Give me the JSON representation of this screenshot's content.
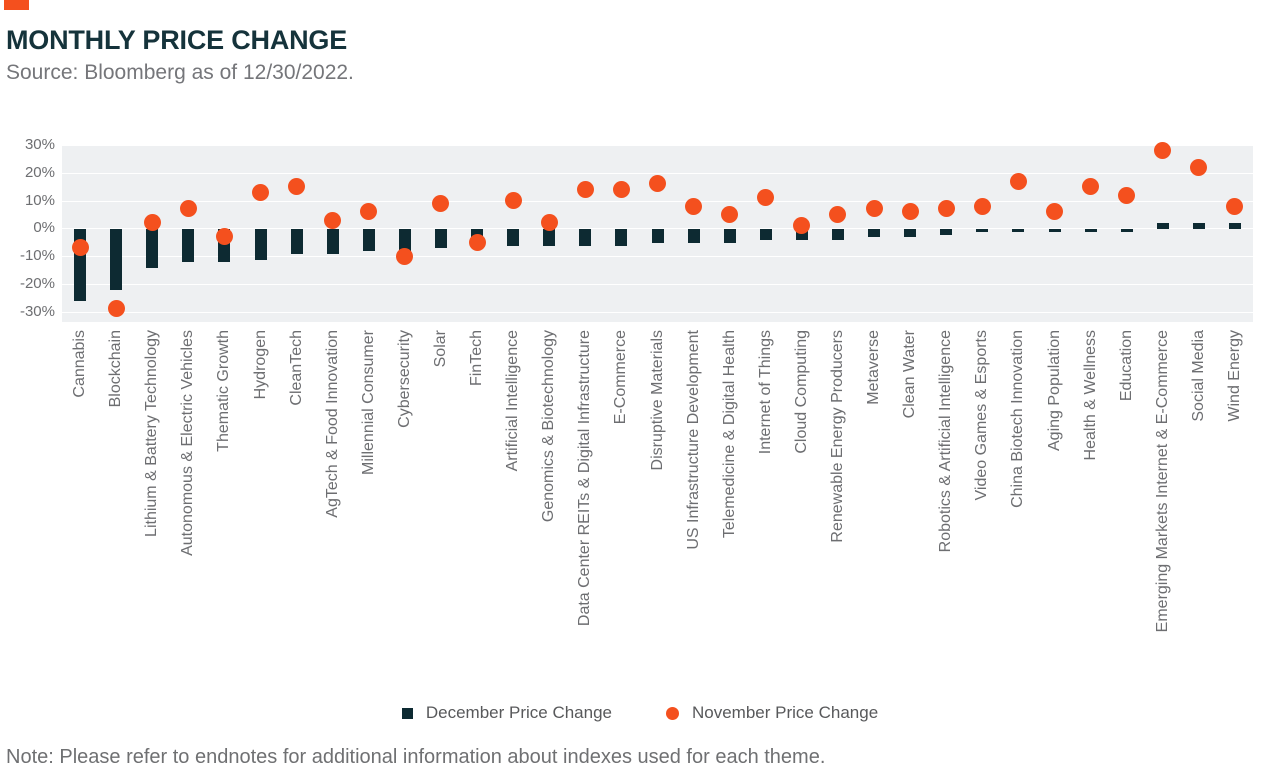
{
  "header": {
    "accent_color": "#F4501E",
    "title": "MONTHLY PRICE CHANGE",
    "source": "Source: Bloomberg as of 12/30/2022."
  },
  "chart_data": {
    "type": "bar",
    "title": "MONTHLY PRICE CHANGE",
    "xlabel": "",
    "ylabel": "",
    "ylim": [
      -33.5,
      30
    ],
    "yticks": [
      30,
      20,
      10,
      0,
      -10,
      -20,
      -30
    ],
    "ytick_suffix": "%",
    "grid": true,
    "legend_position": "bottom",
    "plot_background": "#EEF0F2",
    "categories": [
      "Cannabis",
      "Blockchain",
      "Lithium & Battery Technology",
      "Autonomous & Electric Vehicles",
      "Thematic Growth",
      "Hydrogen",
      "CleanTech",
      "AgTech & Food Innovation",
      "Millennial Consumer",
      "Cybersecurity",
      "Solar",
      "FinTech",
      "Artificial Intelligence",
      "Genomics & Biotechnology",
      "Data Center REITs & Digital Infrastructure",
      "E-Commerce",
      "Disruptive Materials",
      "US Infrastructure Development",
      "Telemedicine & Digital Health",
      "Internet of Things",
      "Cloud Computing",
      "Renewable Energy Producers",
      "Metaverse",
      "Clean Water",
      "Robotics & Artificial Intelligence",
      "Video Games & Esports",
      "China Biotech Innovation",
      "Aging Population",
      "Health & Wellness",
      "Education",
      "Emerging Markets Internet & E-Commerce",
      "Social Media",
      "Wind Energy"
    ],
    "series": [
      {
        "name": "December Price Change",
        "style": "bar",
        "color": "#0D2A32",
        "values": [
          -26,
          -22,
          -14,
          -12,
          -12,
          -11,
          -9,
          -9,
          -8,
          -9,
          -7,
          -4,
          -6,
          -6,
          -6,
          -6,
          -5,
          -5,
          -5,
          -4,
          -4,
          -4,
          -3,
          -3,
          -2,
          -1,
          -1,
          -1,
          -1,
          -1,
          2,
          2,
          2
        ]
      },
      {
        "name": "November Price Change",
        "style": "dot",
        "color": "#F4501E",
        "values": [
          -7,
          -29,
          2,
          7,
          -3,
          13,
          15,
          3,
          6,
          -10,
          9,
          -5,
          10,
          2,
          14,
          14,
          16,
          8,
          5,
          11,
          1,
          5,
          7,
          6,
          7,
          8,
          17,
          6,
          15,
          12,
          28,
          22,
          8
        ]
      }
    ]
  },
  "note": "Note: Please refer to endnotes for additional information about indexes used for each theme."
}
